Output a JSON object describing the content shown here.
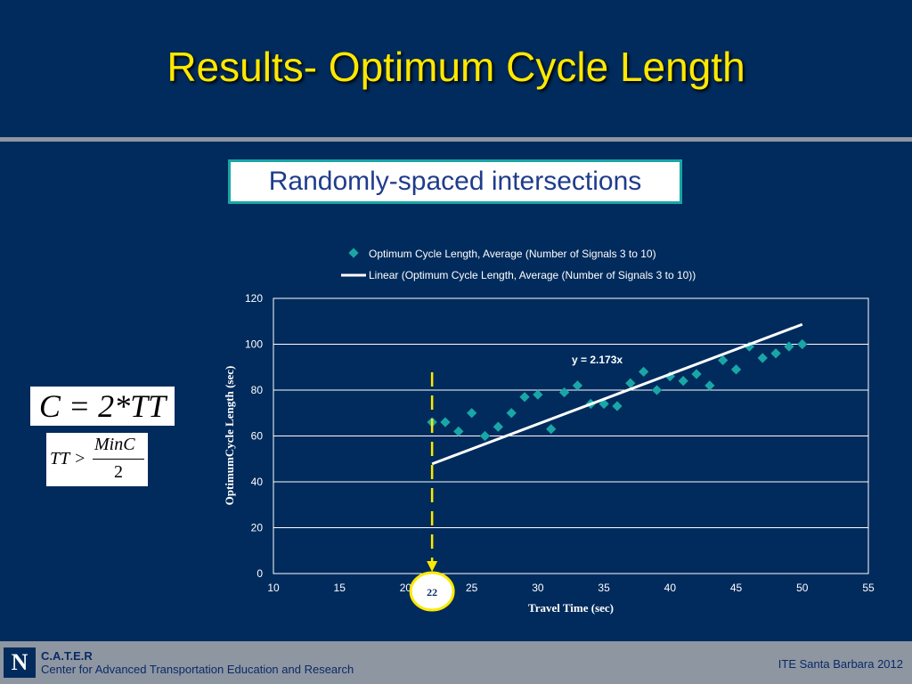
{
  "slide": {
    "title": "Results- Optimum Cycle Length",
    "subtitle": "Randomly-spaced intersections"
  },
  "formulas": {
    "main": "C = 2*TT",
    "condition_lhs": "TT >",
    "condition_num": "MinC",
    "condition_den": "2"
  },
  "chart_data": {
    "type": "scatter",
    "xlabel": "Travel Time (sec)",
    "ylabel": "OptimumCycle Length (sec)",
    "xlim": [
      10,
      55
    ],
    "ylim": [
      0,
      120
    ],
    "x_ticks": [
      10,
      15,
      20,
      25,
      30,
      35,
      40,
      45,
      50,
      55
    ],
    "y_ticks": [
      0,
      20,
      40,
      60,
      80,
      100,
      120
    ],
    "grid": "horizontal",
    "legend_position": "top",
    "series": [
      {
        "name": "Optimum Cycle Length, Average (Number of Signals 3 to 10)",
        "color": "#1aa6a6",
        "points": [
          [
            22,
            66
          ],
          [
            23,
            66
          ],
          [
            24,
            62
          ],
          [
            25,
            70
          ],
          [
            26,
            60
          ],
          [
            27,
            64
          ],
          [
            28,
            70
          ],
          [
            29,
            77
          ],
          [
            30,
            78
          ],
          [
            31,
            63
          ],
          [
            32,
            79
          ],
          [
            33,
            82
          ],
          [
            34,
            74
          ],
          [
            35,
            74
          ],
          [
            36,
            73
          ],
          [
            37,
            83
          ],
          [
            38,
            88
          ],
          [
            39,
            80
          ],
          [
            40,
            86
          ],
          [
            41,
            84
          ],
          [
            42,
            87
          ],
          [
            43,
            82
          ],
          [
            44,
            93
          ],
          [
            45,
            89
          ],
          [
            46,
            99
          ],
          [
            47,
            94
          ],
          [
            48,
            96
          ],
          [
            49,
            99
          ],
          [
            50,
            100
          ]
        ]
      }
    ],
    "trendline": {
      "name": "Linear (Optimum Cycle Length, Average (Number of Signals 3 to 10))",
      "color": "#ffffff",
      "slope": 2.173,
      "x_range": [
        22,
        50
      ],
      "equation": "y = 2.173x"
    },
    "annotation": {
      "x": 22,
      "label": "22",
      "color": "#ffe800"
    }
  },
  "footer": {
    "logo": "N",
    "org": "C.A.T.E.R",
    "center": "Center for Advanced Transportation Education and Research",
    "event": "ITE Santa Barbara 2012"
  }
}
